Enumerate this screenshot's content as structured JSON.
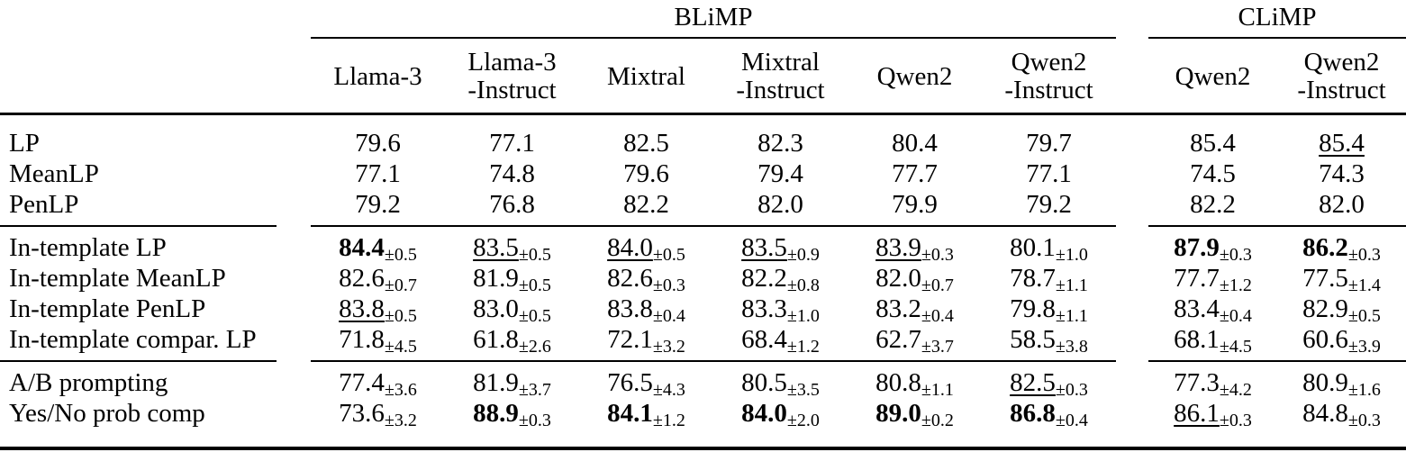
{
  "colors": {
    "text": "#000000",
    "background": "#ffffff",
    "rule": "#000000"
  },
  "table": {
    "groups": [
      {
        "label": "BLiMP",
        "span": 6
      },
      {
        "label": "CLiMP",
        "span": 2
      }
    ],
    "columns": [
      "Llama-3",
      "Llama-3\n-Instruct",
      "Mixtral",
      "Mixtral\n-Instruct",
      "Qwen2",
      "Qwen2\n-Instruct",
      "Qwen2",
      "Qwen2\n-Instruct"
    ],
    "sections": [
      {
        "rows": [
          {
            "label": "LP",
            "cells": [
              {
                "v": "79.6"
              },
              {
                "v": "77.1"
              },
              {
                "v": "82.5"
              },
              {
                "v": "82.3"
              },
              {
                "v": "80.4"
              },
              {
                "v": "79.7"
              },
              {
                "v": "85.4"
              },
              {
                "v": "85.4",
                "u": true
              }
            ]
          },
          {
            "label": "MeanLP",
            "cells": [
              {
                "v": "77.1"
              },
              {
                "v": "74.8"
              },
              {
                "v": "79.6"
              },
              {
                "v": "79.4"
              },
              {
                "v": "77.7"
              },
              {
                "v": "77.1"
              },
              {
                "v": "74.5"
              },
              {
                "v": "74.3"
              }
            ]
          },
          {
            "label": "PenLP",
            "cells": [
              {
                "v": "79.2"
              },
              {
                "v": "76.8"
              },
              {
                "v": "82.2"
              },
              {
                "v": "82.0"
              },
              {
                "v": "79.9"
              },
              {
                "v": "79.2"
              },
              {
                "v": "82.2"
              },
              {
                "v": "82.0"
              }
            ]
          }
        ]
      },
      {
        "rows": [
          {
            "label": "In-template LP",
            "cells": [
              {
                "v": "84.4",
                "s": "±0.5",
                "b": true
              },
              {
                "v": "83.5",
                "s": "±0.5",
                "u": true
              },
              {
                "v": "84.0",
                "s": "±0.5",
                "u": true
              },
              {
                "v": "83.5",
                "s": "±0.9",
                "u": true
              },
              {
                "v": "83.9",
                "s": "±0.3",
                "u": true
              },
              {
                "v": "80.1",
                "s": "±1.0"
              },
              {
                "v": "87.9",
                "s": "±0.3",
                "b": true
              },
              {
                "v": "86.2",
                "s": "±0.3",
                "b": true
              }
            ]
          },
          {
            "label": "In-template MeanLP",
            "cells": [
              {
                "v": "82.6",
                "s": "±0.7"
              },
              {
                "v": "81.9",
                "s": "±0.5"
              },
              {
                "v": "82.6",
                "s": "±0.3"
              },
              {
                "v": "82.2",
                "s": "±0.8"
              },
              {
                "v": "82.0",
                "s": "±0.7"
              },
              {
                "v": "78.7",
                "s": "±1.1"
              },
              {
                "v": "77.7",
                "s": "±1.2"
              },
              {
                "v": "77.5",
                "s": "±1.4"
              }
            ]
          },
          {
            "label": "In-template PenLP",
            "cells": [
              {
                "v": "83.8",
                "s": "±0.5",
                "u": true
              },
              {
                "v": "83.0",
                "s": "±0.5"
              },
              {
                "v": "83.8",
                "s": "±0.4"
              },
              {
                "v": "83.3",
                "s": "±1.0"
              },
              {
                "v": "83.2",
                "s": "±0.4"
              },
              {
                "v": "79.8",
                "s": "±1.1"
              },
              {
                "v": "83.4",
                "s": "±0.4"
              },
              {
                "v": "82.9",
                "s": "±0.5"
              }
            ]
          },
          {
            "label": "In-template compar. LP",
            "cells": [
              {
                "v": "71.8",
                "s": "±4.5"
              },
              {
                "v": "61.8",
                "s": "±2.6"
              },
              {
                "v": "72.1",
                "s": "±3.2"
              },
              {
                "v": "68.4",
                "s": "±1.2"
              },
              {
                "v": "62.7",
                "s": "±3.7"
              },
              {
                "v": "58.5",
                "s": "±3.8"
              },
              {
                "v": "68.1",
                "s": "±4.5"
              },
              {
                "v": "60.6",
                "s": "±3.9"
              }
            ]
          }
        ]
      },
      {
        "rows": [
          {
            "label": "A/B prompting",
            "cells": [
              {
                "v": "77.4",
                "s": "±3.6"
              },
              {
                "v": "81.9",
                "s": "±3.7"
              },
              {
                "v": "76.5",
                "s": "±4.3"
              },
              {
                "v": "80.5",
                "s": "±3.5"
              },
              {
                "v": "80.8",
                "s": "±1.1"
              },
              {
                "v": "82.5",
                "s": "±0.3",
                "u": true
              },
              {
                "v": "77.3",
                "s": "±4.2"
              },
              {
                "v": "80.9",
                "s": "±1.6"
              }
            ]
          },
          {
            "label": "Yes/No prob comp",
            "cells": [
              {
                "v": "73.6",
                "s": "±3.2"
              },
              {
                "v": "88.9",
                "s": "±0.3",
                "b": true
              },
              {
                "v": "84.1",
                "s": "±1.2",
                "b": true
              },
              {
                "v": "84.0",
                "s": "±2.0",
                "b": true
              },
              {
                "v": "89.0",
                "s": "±0.2",
                "b": true
              },
              {
                "v": "86.8",
                "s": "±0.4",
                "b": true
              },
              {
                "v": "86.1",
                "s": "±0.3",
                "u": true
              },
              {
                "v": "84.8",
                "s": "±0.3"
              }
            ]
          }
        ]
      }
    ]
  }
}
